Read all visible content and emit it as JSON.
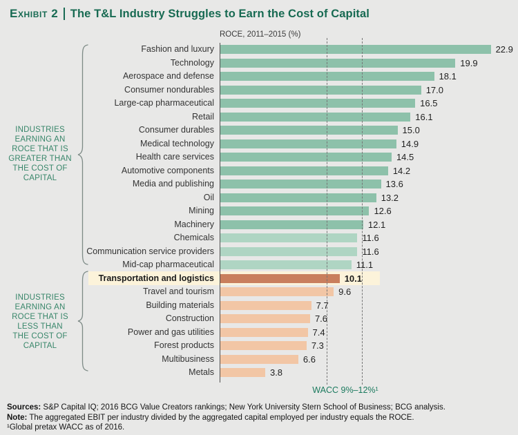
{
  "title": {
    "exhibit_label": "Exhibit 2",
    "main": "The T&L Industry Struggles to Earn the Cost of Capital"
  },
  "chart_data": {
    "type": "bar",
    "orientation": "horizontal",
    "axis_label": "ROCE, 2011–2015 (%)",
    "xlim": [
      0,
      25
    ],
    "wacc_range": [
      9,
      12
    ],
    "wacc_label": "WACC 9%–12%¹",
    "legend_position": "none",
    "grid": "off",
    "bars": [
      {
        "label": "Fashion and luxury",
        "value": 22.9,
        "display": "22.9",
        "color": "teal",
        "highlight": false
      },
      {
        "label": "Technology",
        "value": 19.9,
        "display": "19.9",
        "color": "teal",
        "highlight": false
      },
      {
        "label": "Aerospace and defense",
        "value": 18.1,
        "display": "18.1",
        "color": "teal",
        "highlight": false
      },
      {
        "label": "Consumer nondurables",
        "value": 17.0,
        "display": "17.0",
        "color": "teal",
        "highlight": false
      },
      {
        "label": "Large-cap pharmaceutical",
        "value": 16.5,
        "display": "16.5",
        "color": "teal",
        "highlight": false
      },
      {
        "label": "Retail",
        "value": 16.1,
        "display": "16.1",
        "color": "teal",
        "highlight": false
      },
      {
        "label": "Consumer durables",
        "value": 15.0,
        "display": "15.0",
        "color": "teal",
        "highlight": false
      },
      {
        "label": "Medical technology",
        "value": 14.9,
        "display": "14.9",
        "color": "teal",
        "highlight": false
      },
      {
        "label": "Health care services",
        "value": 14.5,
        "display": "14.5",
        "color": "teal",
        "highlight": false
      },
      {
        "label": "Automotive components",
        "value": 14.2,
        "display": "14.2",
        "color": "teal",
        "highlight": false
      },
      {
        "label": "Media and publishing",
        "value": 13.6,
        "display": "13.6",
        "color": "teal",
        "highlight": false
      },
      {
        "label": "Oil",
        "value": 13.2,
        "display": "13.2",
        "color": "teal",
        "highlight": false
      },
      {
        "label": "Mining",
        "value": 12.6,
        "display": "12.6",
        "color": "teal",
        "highlight": false
      },
      {
        "label": "Machinery",
        "value": 12.1,
        "display": "12.1",
        "color": "teal",
        "highlight": false
      },
      {
        "label": "Chemicals",
        "value": 11.6,
        "display": "11.6",
        "color": "tealLight",
        "highlight": false
      },
      {
        "label": "Communication service providers",
        "value": 11.6,
        "display": "11.6",
        "color": "tealLight",
        "highlight": false
      },
      {
        "label": "Mid-cap pharmaceutical",
        "value": 11.1,
        "display": "11.1",
        "color": "tealLight",
        "highlight": false
      },
      {
        "label": "Transportation and logistics",
        "value": 10.1,
        "display": "10.1",
        "color": "rust",
        "highlight": true
      },
      {
        "label": "Travel and tourism",
        "value": 9.6,
        "display": "9.6",
        "color": "peach",
        "highlight": false
      },
      {
        "label": "Building materials",
        "value": 7.7,
        "display": "7.7",
        "color": "peach",
        "highlight": false
      },
      {
        "label": "Construction",
        "value": 7.6,
        "display": "7.6",
        "color": "peach",
        "highlight": false
      },
      {
        "label": "Power and gas utilities",
        "value": 7.4,
        "display": "7.4",
        "color": "peach",
        "highlight": false
      },
      {
        "label": "Forest products",
        "value": 7.3,
        "display": "7.3",
        "color": "peach",
        "highlight": false
      },
      {
        "label": "Multibusiness",
        "value": 6.6,
        "display": "6.6",
        "color": "peach",
        "highlight": false
      },
      {
        "label": "Metals",
        "value": 3.8,
        "display": "3.8",
        "color": "peach",
        "highlight": false
      }
    ]
  },
  "side_labels": {
    "above": "INDUSTRIES\nEARNING AN\nROCE THAT IS\nGREATER THAN\nTHE COST OF\nCAPITAL",
    "below": "INDUSTRIES\nEARNING AN\nROCE THAT IS\nLESS THAN\nTHE COST OF\nCAPITAL"
  },
  "footer": {
    "sources_label": "Sources:",
    "sources_text": " S&P Capital IQ; 2016 BCG Value Creators rankings; New York University Stern School of Business; BCG analysis.",
    "note_label": "Note:",
    "note_text": " The aggregated EBIT per industry divided by the aggregated capital employed per industry equals the ROCE.",
    "wacc_note": "¹Global pretax WACC as of 2016."
  },
  "colors": {
    "teal": "#8dc1aa",
    "tealLight": "#afd5c3",
    "rust": "#c97f5d",
    "peach": "#f2c6a5",
    "highlight_band": "#fcf3da",
    "title_green": "#176a52",
    "side_green": "#38866a",
    "background": "#e8e8e7"
  }
}
